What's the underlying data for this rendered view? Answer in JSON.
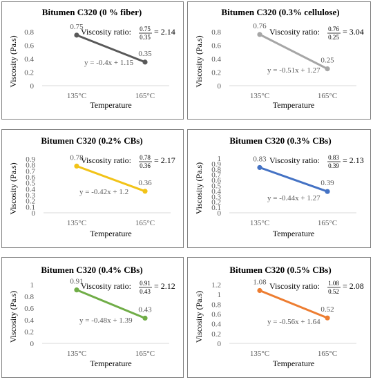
{
  "chart_data": [
    {
      "type": "line",
      "title": "Bitumen C320 (0 % fiber)",
      "xlabel": "Temperature",
      "ylabel": "Viscosity (Pa.s)",
      "categories": [
        "135°C",
        "165°C"
      ],
      "values": [
        0.75,
        0.35
      ],
      "data_labels": [
        "0.75",
        "0.35"
      ],
      "yticks": [
        "0",
        "0.2",
        "0.4",
        "0.6",
        "0.8"
      ],
      "ylim": [
        0,
        0.8
      ],
      "trendline": "y = -0.4x + 1.15",
      "ratio": {
        "prefix": "Viscosity ratio:",
        "num": "0.75",
        "den": "0.35",
        "result": "= 2.14"
      },
      "color": "#595959",
      "grid": false
    },
    {
      "type": "line",
      "title": "Bitumen C320 (0.3% cellulose)",
      "xlabel": "Temperature",
      "ylabel": "Viscosity (Pa.s)",
      "categories": [
        "135°C",
        "165°C"
      ],
      "values": [
        0.76,
        0.25
      ],
      "data_labels": [
        "0.76",
        "0.25"
      ],
      "yticks": [
        "0",
        "0.2",
        "0.4",
        "0.6",
        "0.8"
      ],
      "ylim": [
        0,
        0.8
      ],
      "trendline": "y = -0.51x + 1.27",
      "ratio": {
        "prefix": "Viscosity ratio:",
        "num": "0.76",
        "den": "0.25",
        "result": "= 3.04"
      },
      "color": "#a6a6a6",
      "grid": false
    },
    {
      "type": "line",
      "title": "Bitumen C320 (0.2% CBs)",
      "xlabel": "Temperature",
      "ylabel": "Viscosity (Pa.s)",
      "categories": [
        "135°C",
        "165°C"
      ],
      "values": [
        0.78,
        0.36
      ],
      "data_labels": [
        "0.78",
        "0.36"
      ],
      "yticks": [
        "0",
        "0.1",
        "0.2",
        "0.3",
        "0.4",
        "0.5",
        "0.6",
        "0.7",
        "0.8",
        "0.9"
      ],
      "ylim": [
        0,
        0.9
      ],
      "trendline": "y = -0.42x + 1.2",
      "ratio": {
        "prefix": "Viscosity ratio:",
        "num": "0.78",
        "den": "0.36",
        "result": "= 2.17"
      },
      "color": "#f2c318",
      "grid": false
    },
    {
      "type": "line",
      "title": "Bitumen C320 (0.3% CBs)",
      "xlabel": "Temperature",
      "ylabel": "Viscosity (Pa.s)",
      "categories": [
        "135°C",
        "165°C"
      ],
      "values": [
        0.83,
        0.39
      ],
      "data_labels": [
        "0.83",
        "0.39"
      ],
      "yticks": [
        "0",
        "0.1",
        "0.2",
        "0.3",
        "0.4",
        "0.5",
        "0.6",
        "0.7",
        "0.8",
        "0.9",
        "1"
      ],
      "ylim": [
        0,
        1
      ],
      "trendline": "y = -0.44x + 1.27",
      "ratio": {
        "prefix": "Viscosity ratio:",
        "num": "0.83",
        "den": "0.39",
        "result": "= 2.13"
      },
      "color": "#4472c4",
      "grid": false
    },
    {
      "type": "line",
      "title": "Bitumen C320 (0.4% CBs)",
      "xlabel": "Temperature",
      "ylabel": "Viscosity (Pa.s)",
      "categories": [
        "135°C",
        "165°C"
      ],
      "values": [
        0.91,
        0.43
      ],
      "data_labels": [
        "0.91",
        "0.43"
      ],
      "yticks": [
        "0",
        "0.2",
        "0.4",
        "0.6",
        "0.8",
        "1"
      ],
      "ylim": [
        0,
        1
      ],
      "trendline": "y = -0.48x + 1.39",
      "ratio": {
        "prefix": "Viscosity ratio:",
        "num": "0.91",
        "den": "0.43",
        "result": "= 2.12"
      },
      "color": "#70ad47",
      "grid": false
    },
    {
      "type": "line",
      "title": "Bitumen C320 (0.5% CBs)",
      "xlabel": "Temperature",
      "ylabel": "Viscosity (Pa.s)",
      "categories": [
        "135°C",
        "165°C"
      ],
      "values": [
        1.08,
        0.52
      ],
      "data_labels": [
        "1.08",
        "0.52"
      ],
      "yticks": [
        "0",
        "0.2",
        "0.4",
        "0.6",
        "0.8",
        "1",
        "1.2"
      ],
      "ylim": [
        0,
        1.2
      ],
      "trendline": "y = -0.56x + 1.64",
      "ratio": {
        "prefix": "Viscosity ratio:",
        "num": "1.08",
        "den": "0.52",
        "result": "= 2.08"
      },
      "color": "#ed7d31",
      "grid": false
    }
  ]
}
